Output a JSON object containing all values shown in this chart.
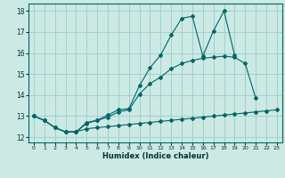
{
  "title": "",
  "xlabel": "Humidex (Indice chaleur)",
  "ylabel": "",
  "bg_color": "#cce9e4",
  "grid_color": "#99cccc",
  "line_color": "#006666",
  "xlim": [
    -0.5,
    23.5
  ],
  "ylim": [
    11.75,
    18.35
  ],
  "yticks": [
    12,
    13,
    14,
    15,
    16,
    17,
    18
  ],
  "xticks": [
    0,
    1,
    2,
    3,
    4,
    5,
    6,
    7,
    8,
    9,
    10,
    11,
    12,
    13,
    14,
    15,
    16,
    17,
    18,
    19,
    20,
    21,
    22,
    23
  ],
  "line1_y": [
    13.0,
    12.8,
    12.45,
    12.25,
    12.25,
    12.7,
    12.8,
    13.05,
    13.3,
    13.35,
    14.45,
    15.3,
    15.9,
    16.85,
    17.65,
    17.75,
    15.85,
    17.05,
    18.0,
    15.9,
    null,
    null,
    null,
    null
  ],
  "line2_y": [
    13.0,
    12.8,
    12.45,
    12.25,
    12.25,
    12.65,
    12.8,
    12.95,
    13.2,
    13.3,
    14.05,
    14.55,
    14.85,
    15.25,
    15.5,
    15.65,
    15.75,
    15.8,
    15.85,
    15.8,
    15.5,
    13.85,
    null,
    null
  ],
  "line3_y": [
    13.0,
    12.8,
    12.45,
    12.25,
    12.25,
    12.4,
    12.45,
    12.5,
    12.55,
    12.6,
    12.65,
    12.7,
    12.75,
    12.8,
    12.85,
    12.9,
    12.95,
    13.0,
    13.05,
    13.1,
    13.15,
    13.2,
    13.25,
    13.3
  ]
}
